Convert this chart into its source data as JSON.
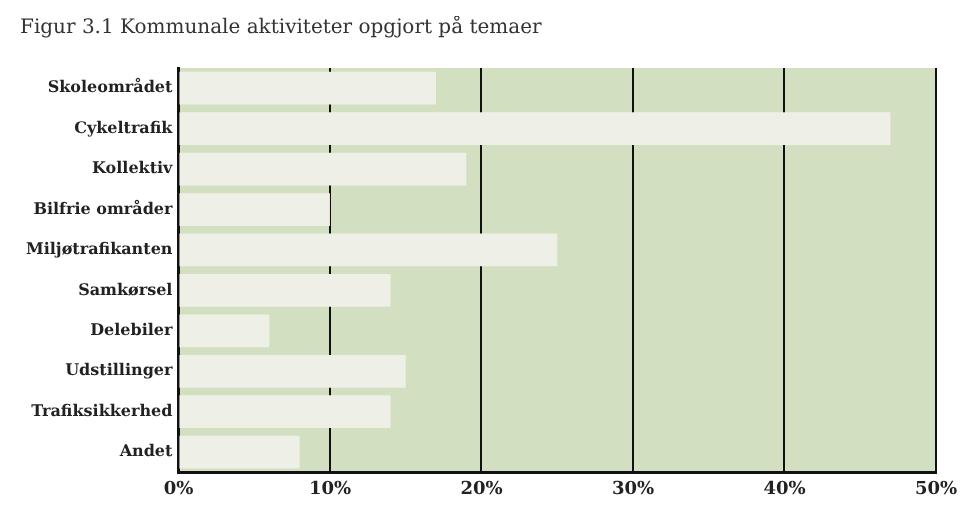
{
  "chart_data": {
    "type": "bar",
    "orientation": "horizontal",
    "title": "Figur 3.1 Kommunale aktiviteter opgjort på temaer",
    "categories": [
      "Skoleområdet",
      "Cykeltrafik",
      "Kollektiv",
      "Bilfrie områder",
      "Miljøtrafikanten",
      "Samkørsel",
      "Delebiler",
      "Udstillinger",
      "Trafiksikkerhed",
      "Andet"
    ],
    "values": [
      17,
      47,
      19,
      10,
      25,
      14,
      6,
      15,
      14,
      8
    ],
    "color": "#eeefe6",
    "xlim": [
      0,
      50
    ],
    "xticks": [
      {
        "value": 0,
        "label": "0%"
      },
      {
        "value": 10,
        "label": "10%"
      },
      {
        "value": 20,
        "label": "20%"
      },
      {
        "value": 30,
        "label": "30%"
      },
      {
        "value": 40,
        "label": "40%"
      },
      {
        "value": 50,
        "label": "50%"
      }
    ],
    "grid": "x"
  }
}
